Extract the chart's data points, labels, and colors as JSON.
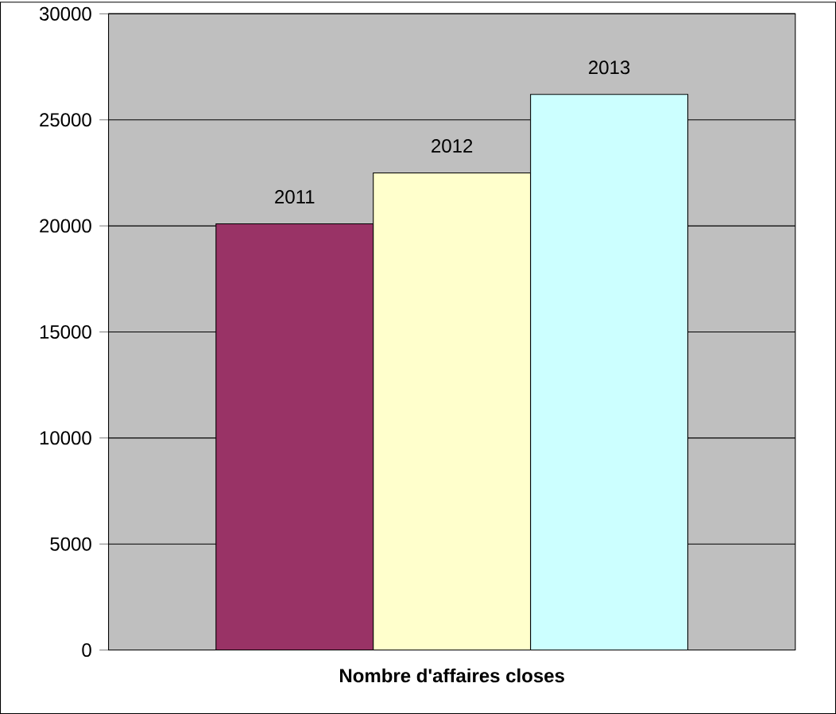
{
  "chart_data": {
    "type": "bar",
    "xlabel": "Nombre d'affaires closes",
    "categories": [
      null
    ],
    "series": [
      {
        "name": "2011",
        "color": "#993366",
        "values": [
          20100
        ]
      },
      {
        "name": "2012",
        "color": "#ffffcc",
        "values": [
          22500
        ]
      },
      {
        "name": "2013",
        "color": "#ccffff",
        "values": [
          26200
        ]
      }
    ],
    "ylim": [
      0,
      30000
    ],
    "yticks": [
      0,
      5000,
      10000,
      15000,
      20000,
      25000,
      30000
    ],
    "grid": "y",
    "tick_labels": "y"
  }
}
